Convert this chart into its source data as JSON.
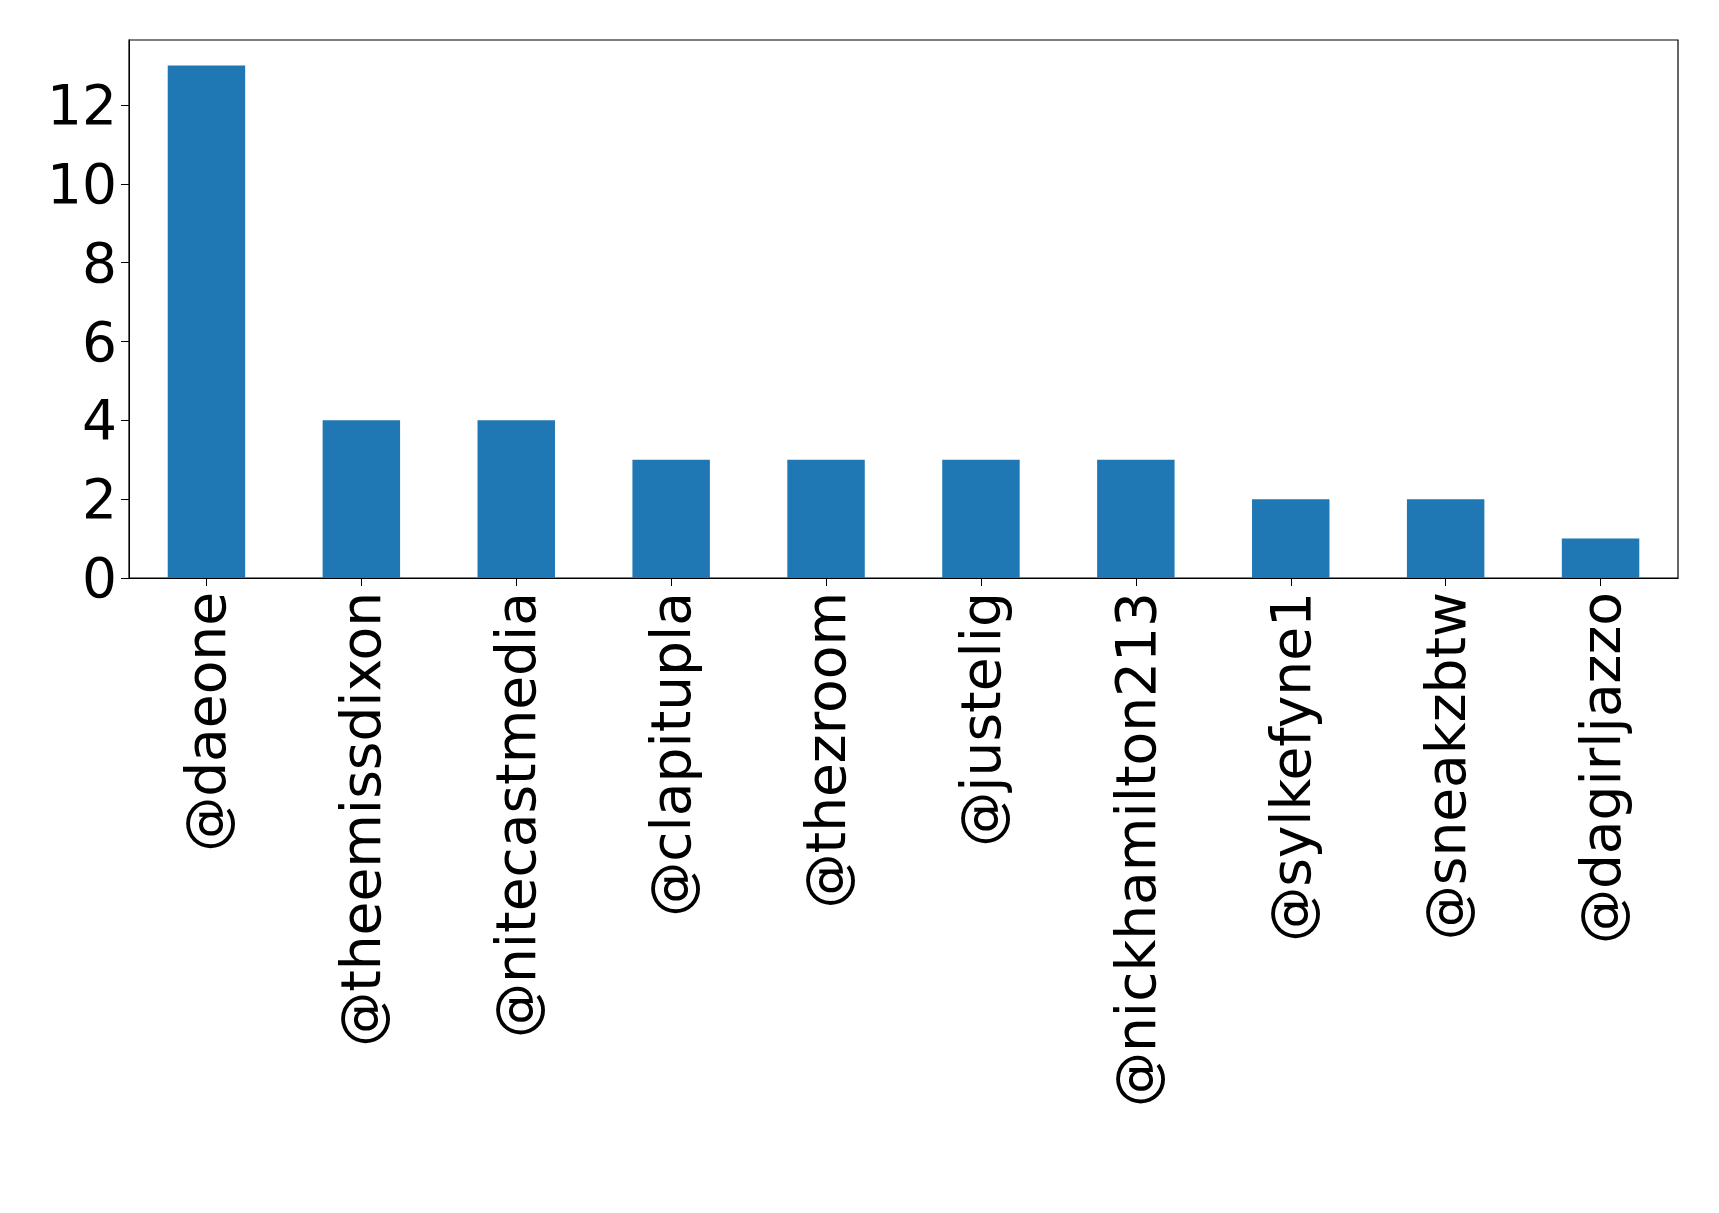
{
  "chart_data": {
    "type": "bar",
    "categories": [
      "@daeone",
      "@theemissdixon",
      "@nitecastmedia",
      "@clapitupla",
      "@thezroom",
      "@justelig",
      "@nickhamilton213",
      "@sylkefyne1",
      "@sneakzbtw",
      "@dagirljazzo"
    ],
    "values": [
      13,
      4,
      4,
      3,
      3,
      3,
      3,
      2,
      2,
      1
    ],
    "color": "#1f77b4",
    "ylim": [
      0,
      13.65
    ],
    "yticks": [
      0,
      2,
      4,
      6,
      8,
      10,
      12
    ],
    "grid": false
  }
}
